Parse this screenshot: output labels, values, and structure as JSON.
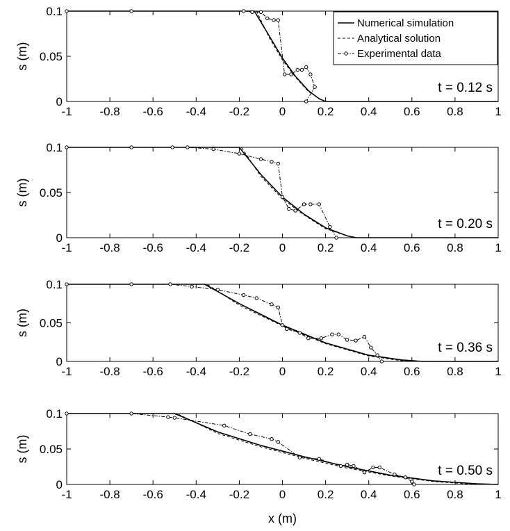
{
  "chart_data": {
    "type": "line",
    "xlabel": "x (m)",
    "ylabel": "s (m)",
    "xlim": [
      -1,
      1
    ],
    "ylim": [
      0,
      0.1
    ],
    "xticks": [
      "-1",
      "-0.8",
      "-0.6",
      "-0.4",
      "-0.2",
      "0",
      "0.2",
      "0.4",
      "0.6",
      "0.8",
      "1"
    ],
    "yticks": [
      "0",
      "0.05",
      "0.1"
    ],
    "legend": {
      "location": "top-right",
      "entries": [
        {
          "label": "Numerical simulation",
          "style": "solid"
        },
        {
          "label": "Analytical solution",
          "style": "dashed"
        },
        {
          "label": "Experimental data",
          "style": "dash-dot-markers"
        }
      ]
    },
    "panels": [
      {
        "time_label": "t = 0.12 s",
        "series": [
          {
            "name": "Numerical simulation",
            "x": [
              -1,
              -0.13,
              -0.06,
              0,
              0.06,
              0.12,
              0.17,
              0.2,
              1
            ],
            "y": [
              0.1,
              0.1,
              0.072,
              0.048,
              0.028,
              0.012,
              0.003,
              0,
              0
            ]
          },
          {
            "name": "Analytical solution",
            "x": [
              -1,
              -0.12,
              -0.06,
              0,
              0.06,
              0.12,
              0.18,
              0.2,
              1
            ],
            "y": [
              0.1,
              0.1,
              0.07,
              0.046,
              0.027,
              0.011,
              0.002,
              0,
              0
            ]
          },
          {
            "name": "Experimental data",
            "x": [
              -1,
              -0.7,
              -0.18,
              -0.14,
              -0.1,
              -0.07,
              -0.04,
              -0.02,
              0.01,
              0.04,
              0.07,
              0.09,
              0.11,
              0.13,
              0.15,
              0.11
            ],
            "y": [
              0.1,
              0.1,
              0.1,
              0.099,
              0.099,
              0.092,
              0.09,
              0.09,
              0.03,
              0.03,
              0.035,
              0.035,
              0.038,
              0.03,
              0.016,
              0
            ]
          }
        ]
      },
      {
        "time_label": "t = 0.20 s",
        "series": [
          {
            "name": "Numerical simulation",
            "x": [
              -1,
              -0.2,
              -0.1,
              0,
              0.1,
              0.2,
              0.3,
              0.34,
              1
            ],
            "y": [
              0.1,
              0.1,
              0.07,
              0.045,
              0.026,
              0.011,
              0.002,
              0,
              0
            ]
          },
          {
            "name": "Analytical solution",
            "x": [
              -1,
              -0.19,
              -0.1,
              0,
              0.1,
              0.2,
              0.3,
              0.35,
              1
            ],
            "y": [
              0.1,
              0.1,
              0.068,
              0.043,
              0.025,
              0.01,
              0.002,
              0,
              0
            ]
          },
          {
            "name": "Experimental data",
            "x": [
              -1,
              -0.7,
              -0.51,
              -0.44,
              -0.32,
              -0.2,
              -0.1,
              -0.05,
              -0.02,
              0,
              0.03,
              0.06,
              0.1,
              0.13,
              0.17,
              0.22,
              0.25
            ],
            "y": [
              0.1,
              0.1,
              0.1,
              0.1,
              0.098,
              0.093,
              0.087,
              0.084,
              0.082,
              0.045,
              0.032,
              0.03,
              0.037,
              0.037,
              0.037,
              0.012,
              0
            ]
          }
        ]
      },
      {
        "time_label": "t = 0.36 s",
        "series": [
          {
            "name": "Numerical simulation",
            "x": [
              -1,
              -0.36,
              -0.2,
              0,
              0.2,
              0.4,
              0.55,
              0.65,
              1
            ],
            "y": [
              0.1,
              0.1,
              0.075,
              0.047,
              0.024,
              0.008,
              0.002,
              0,
              0
            ]
          },
          {
            "name": "Analytical solution",
            "x": [
              -1,
              -0.35,
              -0.2,
              0,
              0.2,
              0.4,
              0.55,
              0.66,
              1
            ],
            "y": [
              0.1,
              0.1,
              0.073,
              0.046,
              0.023,
              0.007,
              0.001,
              0,
              0
            ]
          },
          {
            "name": "Experimental data",
            "x": [
              -1,
              -0.7,
              -0.52,
              -0.42,
              -0.3,
              -0.18,
              -0.12,
              -0.05,
              -0.02,
              0,
              0.02,
              0.08,
              0.12,
              0.18,
              0.23,
              0.26,
              0.3,
              0.34,
              0.38,
              0.41,
              0.44,
              0.46
            ],
            "y": [
              0.1,
              0.1,
              0.1,
              0.097,
              0.093,
              0.086,
              0.082,
              0.074,
              0.07,
              0.047,
              0.042,
              0.037,
              0.03,
              0.03,
              0.035,
              0.035,
              0.028,
              0.027,
              0.032,
              0.018,
              0.008,
              0
            ]
          }
        ]
      },
      {
        "time_label": "t = 0.50 s",
        "series": [
          {
            "name": "Numerical simulation",
            "x": [
              -1,
              -0.5,
              -0.3,
              -0.1,
              0.1,
              0.3,
              0.5,
              0.7,
              0.9,
              1
            ],
            "y": [
              0.1,
              0.1,
              0.074,
              0.055,
              0.039,
              0.025,
              0.013,
              0.005,
              0.001,
              0
            ]
          },
          {
            "name": "Analytical solution",
            "x": [
              -1,
              -0.49,
              -0.3,
              -0.1,
              0.1,
              0.3,
              0.5,
              0.7,
              0.9,
              1
            ],
            "y": [
              0.1,
              0.1,
              0.072,
              0.053,
              0.037,
              0.023,
              0.012,
              0.004,
              0,
              0
            ]
          },
          {
            "name": "Experimental data",
            "x": [
              -1,
              -0.7,
              -0.53,
              -0.5,
              -0.27,
              -0.15,
              -0.05,
              -0.02,
              0.08,
              0.17,
              0.27,
              0.3,
              0.33,
              0.38,
              0.42,
              0.45,
              0.52,
              0.57,
              0.6,
              0.61
            ],
            "y": [
              0.1,
              0.1,
              0.095,
              0.094,
              0.083,
              0.071,
              0.064,
              0.06,
              0.038,
              0.036,
              0.026,
              0.028,
              0.026,
              0.017,
              0.024,
              0.024,
              0.014,
              0.01,
              0.004,
              0
            ]
          }
        ]
      }
    ]
  }
}
